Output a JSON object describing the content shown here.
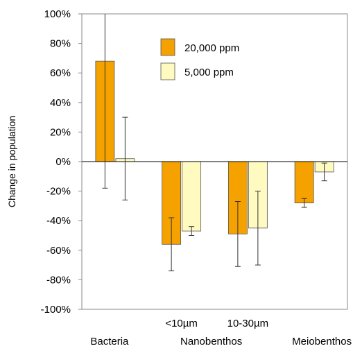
{
  "chart_data": {
    "type": "bar",
    "title": "",
    "xlabel": "",
    "ylabel": "Change in population",
    "ylim": [
      -100,
      100
    ],
    "ytick_step": 20,
    "ytick_labels": [
      "100%",
      "80%",
      "60%",
      "40%",
      "20%",
      "0%",
      "-20%",
      "-40%",
      "-60%",
      "-80%",
      "-100%"
    ],
    "categories": [
      "Bacteria",
      "<10µm",
      "10-30µm",
      "Meiobenthos"
    ],
    "category_labels_top": [
      "",
      "<10µm",
      "10-30µm",
      ""
    ],
    "category_labels_bottom": [
      "Bacteria",
      "Nanobenthos",
      "",
      "Meiobenthos"
    ],
    "series": [
      {
        "name": "20,000 ppm",
        "color": "#F5A100",
        "values": [
          68,
          -56,
          -49,
          -28
        ],
        "error": [
          86,
          18,
          22,
          3
        ]
      },
      {
        "name": "5,000 ppm",
        "color": "#FFFAC0",
        "values": [
          2,
          -47,
          -45,
          -7
        ],
        "error": [
          28,
          3,
          25,
          6
        ]
      }
    ],
    "grid": false,
    "legend_position": "top-center"
  }
}
